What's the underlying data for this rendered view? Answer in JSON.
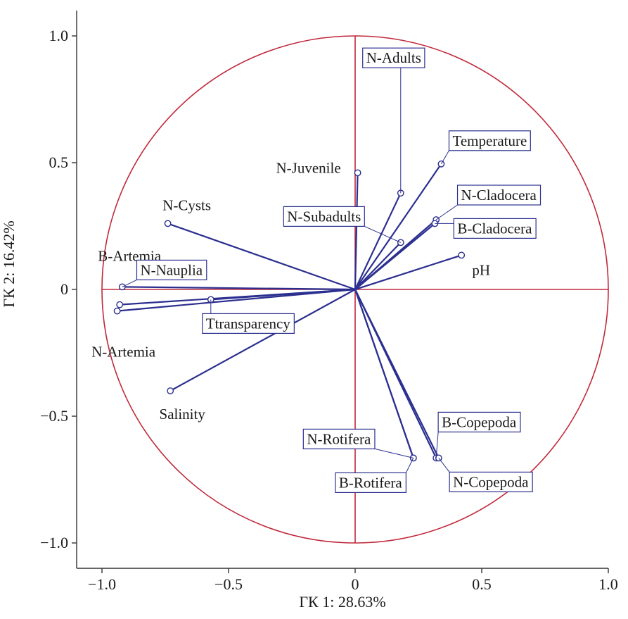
{
  "chart_data": {
    "type": "scatter",
    "subtype": "pca-correlation-circle",
    "xlabel": "ГК 1: 28.63%",
    "ylabel": "ГК 2: 16.42%",
    "xlim": [
      -1.1,
      1.0
    ],
    "ylim": [
      -1.1,
      1.1
    ],
    "x_ticks": [
      "−1.0",
      "−0.5",
      "0",
      "0.5",
      "1.0"
    ],
    "y_ticks": [
      "1.0",
      "0.5",
      "0",
      "−0.5",
      "−1.0"
    ],
    "grid": false,
    "unit_circle": true,
    "colors": {
      "vector": "#2b2f8f",
      "circle": "#c0283a",
      "axes": "#c0283a",
      "frame": "#333333"
    },
    "points": [
      {
        "label": "N-Adults",
        "x": 0.18,
        "y": 0.38,
        "boxed": true
      },
      {
        "label": "Temperature",
        "x": 0.34,
        "y": 0.495,
        "boxed": true
      },
      {
        "label": "N-Juvenile",
        "x": 0.01,
        "y": 0.46,
        "boxed": false
      },
      {
        "label": "N-Cladocera",
        "x": 0.32,
        "y": 0.275,
        "boxed": true
      },
      {
        "label": "B-Cladocera",
        "x": 0.315,
        "y": 0.26,
        "boxed": true
      },
      {
        "label": "N-Subadults",
        "x": 0.18,
        "y": 0.185,
        "boxed": true
      },
      {
        "label": "pH",
        "x": 0.42,
        "y": 0.135,
        "boxed": false
      },
      {
        "label": "N-Cysts",
        "x": -0.74,
        "y": 0.26,
        "boxed": false
      },
      {
        "label": "B-Artemia",
        "x": -0.93,
        "y": -0.06,
        "boxed": false
      },
      {
        "label": "N-Nauplia",
        "x": -0.92,
        "y": 0.01,
        "boxed": true
      },
      {
        "label": "N-Artemia",
        "x": -0.94,
        "y": -0.085,
        "boxed": false
      },
      {
        "label": "Ttransparency",
        "x": -0.57,
        "y": -0.04,
        "boxed": true
      },
      {
        "label": "Salinity",
        "x": -0.73,
        "y": -0.4,
        "boxed": false
      },
      {
        "label": "N-Rotifera",
        "x": 0.23,
        "y": -0.665,
        "boxed": true
      },
      {
        "label": "B-Rotifera",
        "x": 0.23,
        "y": -0.665,
        "boxed": true
      },
      {
        "label": "B-Copepoda",
        "x": 0.32,
        "y": -0.665,
        "boxed": true
      },
      {
        "label": "N-Copepoda",
        "x": 0.33,
        "y": -0.665,
        "boxed": true
      }
    ]
  }
}
